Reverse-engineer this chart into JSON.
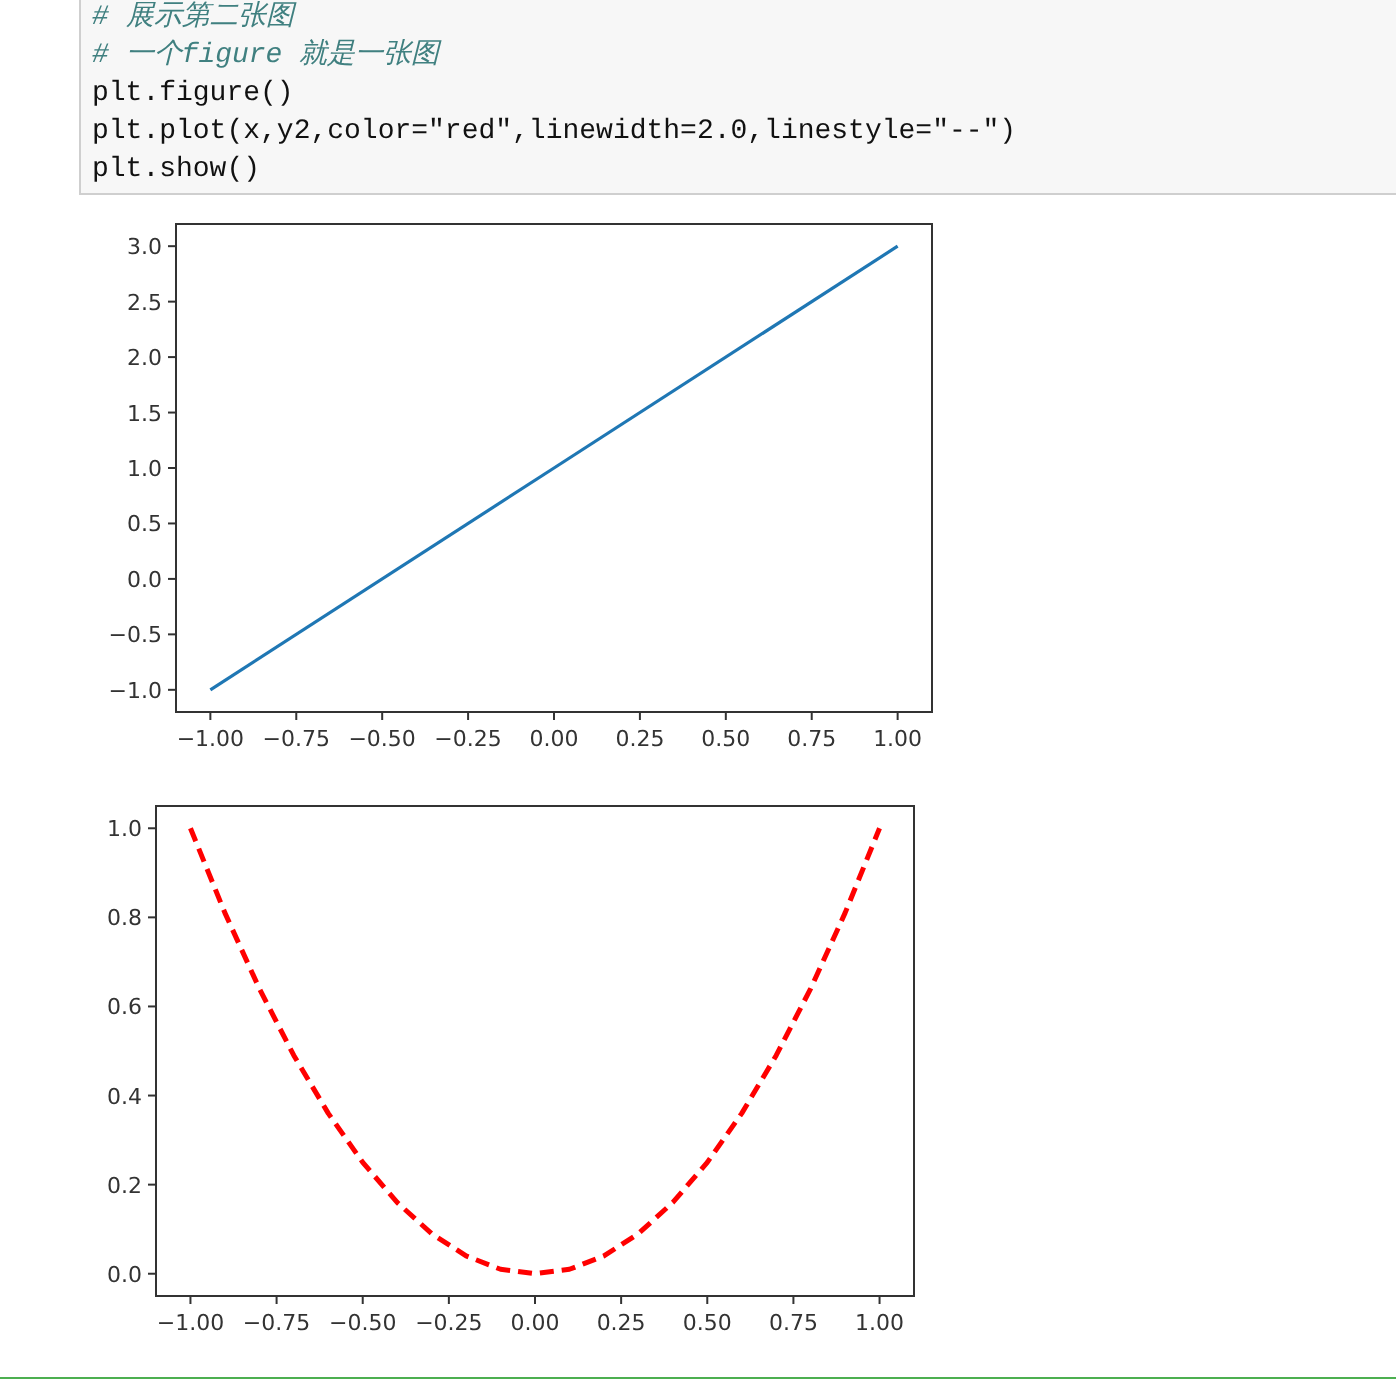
{
  "chart_data": [
    {
      "type": "line",
      "annotations": [
        "# 展示第二张图",
        "# 一个figure 就是一张图",
        "plt.figure()",
        "plt.plot(x,y2,color=\"red\",linewidth=2.0,linestyle=\"--\")",
        "plt.show()"
      ],
      "x": [
        -1,
        0,
        1
      ],
      "series": [
        {
          "color": "#1f77b4",
          "values": [
            -1,
            1,
            3
          ]
        }
      ],
      "xlim": [
        -1.1,
        1.1
      ],
      "ylim": [
        -1.2,
        3.2
      ],
      "xticks": [
        {
          "value": -1,
          "label": "−1.00"
        },
        {
          "value": -0.75,
          "label": "−0.75"
        },
        {
          "value": -0.5,
          "label": "−0.50"
        },
        {
          "value": -0.25,
          "label": "−0.25"
        },
        {
          "value": 0,
          "label": "0.00"
        },
        {
          "value": 0.25,
          "label": "0.25"
        },
        {
          "value": 0.5,
          "label": "0.50"
        },
        {
          "value": 0.75,
          "label": "0.75"
        },
        {
          "value": 1,
          "label": "1.00"
        }
      ],
      "yticks": [
        {
          "value": -1,
          "label": "−1.0"
        },
        {
          "value": -0.5,
          "label": "−0.5"
        },
        {
          "value": 0,
          "label": "0.0"
        },
        {
          "value": 0.5,
          "label": "0.5"
        },
        {
          "value": 1,
          "label": "1.0"
        },
        {
          "value": 1.5,
          "label": "1.5"
        },
        {
          "value": 2,
          "label": "2.0"
        },
        {
          "value": 2.5,
          "label": "2.5"
        },
        {
          "value": 3,
          "label": "3.0"
        }
      ]
    },
    {
      "type": "line",
      "line_style": "dashed",
      "x": [
        -1,
        -0.9,
        -0.8,
        -0.7,
        -0.6,
        -0.5,
        -0.4,
        -0.3,
        -0.2,
        -0.1,
        0,
        0.1,
        0.2,
        0.3,
        0.4,
        0.5,
        0.6,
        0.7,
        0.8,
        0.9,
        1
      ],
      "series": [
        {
          "color": "#ff0000",
          "values": [
            1,
            0.81,
            0.64,
            0.49,
            0.36,
            0.25,
            0.16,
            0.09,
            0.04,
            0.01,
            0,
            0.01,
            0.04,
            0.09,
            0.16,
            0.25,
            0.36,
            0.49,
            0.64,
            0.81,
            1
          ]
        }
      ],
      "xlim": [
        -1.1,
        1.1
      ],
      "ylim": [
        -0.05,
        1.05
      ],
      "xticks": [
        {
          "value": -1,
          "label": "−1.00"
        },
        {
          "value": -0.75,
          "label": "−0.75"
        },
        {
          "value": -0.5,
          "label": "−0.50"
        },
        {
          "value": -0.25,
          "label": "−0.25"
        },
        {
          "value": 0,
          "label": "0.00"
        },
        {
          "value": 0.25,
          "label": "0.25"
        },
        {
          "value": 0.5,
          "label": "0.50"
        },
        {
          "value": 0.75,
          "label": "0.75"
        },
        {
          "value": 1,
          "label": "1.00"
        }
      ],
      "yticks": [
        {
          "value": 0,
          "label": "0.0"
        },
        {
          "value": 0.2,
          "label": "0.2"
        },
        {
          "value": 0.4,
          "label": "0.4"
        },
        {
          "value": 0.6,
          "label": "0.6"
        },
        {
          "value": 0.8,
          "label": "0.8"
        },
        {
          "value": 1,
          "label": "1.0"
        }
      ]
    }
  ]
}
